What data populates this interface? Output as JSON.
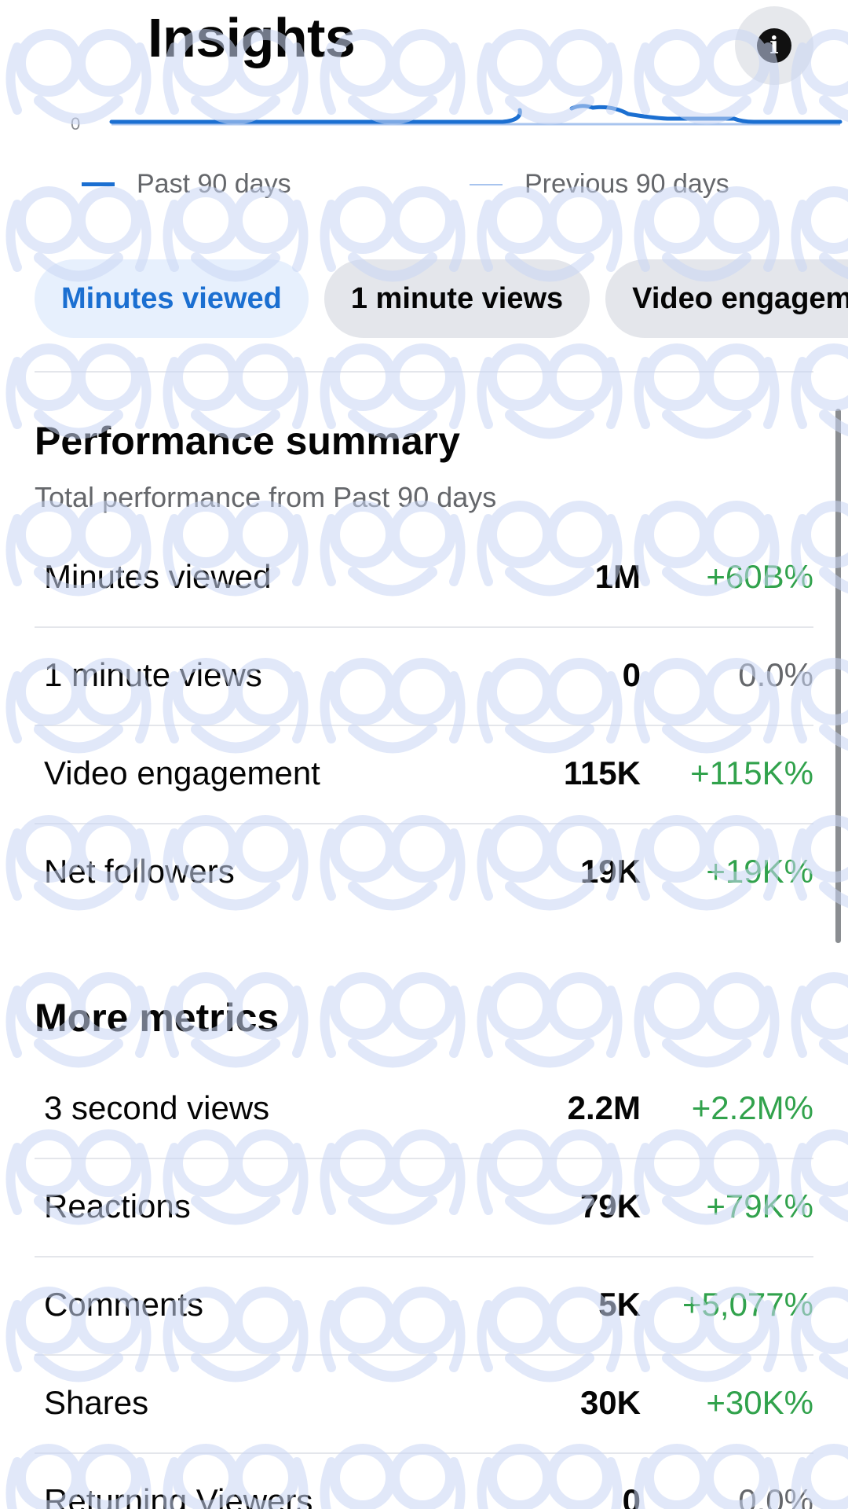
{
  "header": {
    "title": "Insights",
    "info_icon": "info-icon",
    "info_glyph": "i"
  },
  "chart_data": {
    "type": "line",
    "yticks": [
      "0"
    ],
    "series": [
      {
        "name": "Past 90 days",
        "color": "#1b6fd1"
      },
      {
        "name": "Previous 90 days",
        "color": "#a8c4ee"
      }
    ]
  },
  "legend": {
    "past": "Past 90 days",
    "previous": "Previous 90 days"
  },
  "tabs": [
    {
      "label": "Minutes viewed",
      "active": true
    },
    {
      "label": "1 minute views",
      "active": false
    },
    {
      "label": "Video engagement",
      "active": false
    }
  ],
  "performance": {
    "title": "Performance summary",
    "subtitle": "Total performance from Past 90 days",
    "rows": [
      {
        "label": "Minutes viewed",
        "value": "1M",
        "change": "+60B%",
        "trend": "up"
      },
      {
        "label": "1 minute views",
        "value": "0",
        "change": "0.0%",
        "trend": "flat"
      },
      {
        "label": "Video engagement",
        "value": "115K",
        "change": "+115K%",
        "trend": "up"
      },
      {
        "label": "Net followers",
        "value": "19K",
        "change": "+19K%",
        "trend": "up"
      }
    ]
  },
  "more_metrics": {
    "title": "More metrics",
    "rows": [
      {
        "label": "3 second views",
        "value": "2.2M",
        "change": "+2.2M%",
        "trend": "up"
      },
      {
        "label": "Reactions",
        "value": "79K",
        "change": "+79K%",
        "trend": "up"
      },
      {
        "label": "Comments",
        "value": "5K",
        "change": "+5,077%",
        "trend": "up"
      },
      {
        "label": "Shares",
        "value": "30K",
        "change": "+30K%",
        "trend": "up"
      },
      {
        "label": "Returning Viewers",
        "value": "0",
        "change": "0.0%",
        "trend": "flat"
      }
    ]
  },
  "colors": {
    "accent": "#1b6fd1",
    "positive": "#31a24c",
    "neutral": "#65676b",
    "watermark": "#dbe3f8"
  }
}
